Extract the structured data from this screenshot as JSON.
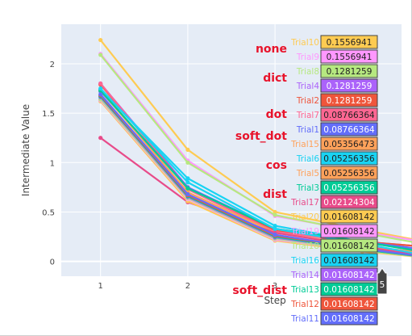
{
  "chart_data": {
    "type": "line",
    "xlabel": "Step",
    "ylabel": "Intermediate Value",
    "xlim": [
      0.55,
      4.45
    ],
    "ylim": [
      -0.15,
      2.4
    ],
    "x_ticks": [
      1,
      2,
      3
    ],
    "y_ticks": [
      0,
      0.5,
      1,
      1.5,
      2
    ],
    "x_tick_labels": [
      "1",
      "2",
      "3"
    ],
    "y_tick_labels": [
      "0",
      "0.5",
      "1",
      "1.5",
      "2"
    ],
    "x": [
      1,
      2,
      3,
      4,
      5
    ],
    "hover_x_label": "5",
    "series": [
      {
        "name": "Trial10",
        "color": "#FECB52",
        "values": [
          2.24,
          1.13,
          0.5,
          0.32,
          0.1556941
        ]
      },
      {
        "name": "Trial9",
        "color": "#FF97FF",
        "values": [
          2.1,
          1.02,
          0.46,
          0.3,
          0.1556941
        ]
      },
      {
        "name": "Trial8",
        "color": "#B6E880",
        "values": [
          2.09,
          1.0,
          0.47,
          0.29,
          0.1281259
        ]
      },
      {
        "name": "Trial4",
        "color": "#AB63FA",
        "values": [
          1.8,
          0.75,
          0.3,
          0.2,
          0.1281259
        ]
      },
      {
        "name": "Trial2",
        "color": "#EF553B",
        "values": [
          1.79,
          0.74,
          0.31,
          0.2,
          0.1281259
        ]
      },
      {
        "name": "Trial7",
        "color": "#FF6692",
        "values": [
          1.8,
          0.73,
          0.3,
          0.19,
          0.08766364
        ]
      },
      {
        "name": "Trial1",
        "color": "#636EFA",
        "values": [
          1.72,
          0.75,
          0.33,
          0.2,
          0.08766364
        ]
      },
      {
        "name": "Trial15",
        "color": "#FFA15A",
        "values": [
          1.73,
          0.7,
          0.29,
          0.16,
          0.05356473
        ]
      },
      {
        "name": "Trial6",
        "color": "#19D3F3",
        "values": [
          1.74,
          0.84,
          0.36,
          0.2,
          0.05256356
        ]
      },
      {
        "name": "Trial5",
        "color": "#FFA15A",
        "values": [
          1.64,
          0.66,
          0.25,
          0.16,
          0.05256356
        ]
      },
      {
        "name": "Trial3",
        "color": "#00CC96",
        "values": [
          1.73,
          0.74,
          0.33,
          0.2,
          0.05256356
        ]
      },
      {
        "name": "Trial17",
        "color": "#E84B8A",
        "values": [
          1.25,
          0.6,
          0.29,
          0.15,
          0.02124304
        ]
      },
      {
        "name": "Trial20",
        "color": "#FECB52",
        "values": [
          1.62,
          0.61,
          0.21,
          0.1,
          0.01608142
        ]
      },
      {
        "name": "Trial19",
        "color": "#FF97FF",
        "values": [
          1.63,
          0.63,
          0.22,
          0.11,
          0.01608142
        ]
      },
      {
        "name": "Trial18",
        "color": "#B6E880",
        "values": [
          1.64,
          0.64,
          0.23,
          0.11,
          0.01608142
        ]
      },
      {
        "name": "Trial16",
        "color": "#19D3F3",
        "values": [
          1.75,
          0.8,
          0.33,
          0.18,
          0.01608142
        ]
      },
      {
        "name": "Trial14",
        "color": "#AB63FA",
        "values": [
          1.66,
          0.65,
          0.24,
          0.12,
          0.01608142
        ]
      },
      {
        "name": "Trial13",
        "color": "#00CC96",
        "values": [
          1.67,
          0.66,
          0.25,
          0.12,
          0.01608142
        ]
      },
      {
        "name": "Trial12",
        "color": "#EF553B",
        "values": [
          1.68,
          0.67,
          0.26,
          0.13,
          0.01608142
        ]
      },
      {
        "name": "Trial11",
        "color": "#636EFA",
        "values": [
          1.69,
          0.68,
          0.27,
          0.13,
          0.01608142
        ]
      }
    ],
    "hover": [
      {
        "trial": "Trial10",
        "value": "0.1556941",
        "color": "#FECB52"
      },
      {
        "trial": "Trial9",
        "value": "0.1556941",
        "color": "#FF97FF"
      },
      {
        "trial": "Trial8",
        "value": "0.1281259",
        "color": "#B6E880"
      },
      {
        "trial": "Trial4",
        "value": "0.1281259",
        "color": "#AB63FA"
      },
      {
        "trial": "Trial2",
        "value": "0.1281259",
        "color": "#EF553B"
      },
      {
        "trial": "Trial7",
        "value": "0.08766364",
        "color": "#FF6692"
      },
      {
        "trial": "Trial1",
        "value": "0.08766364",
        "color": "#636EFA"
      },
      {
        "trial": "Trial15",
        "value": "0.05356473",
        "color": "#FFA15A"
      },
      {
        "trial": "Trial6",
        "value": "0.05256356",
        "color": "#19D3F3"
      },
      {
        "trial": "Trial5",
        "value": "0.05256356",
        "color": "#FFA15A"
      },
      {
        "trial": "Trial3",
        "value": "0.05256356",
        "color": "#00CC96"
      },
      {
        "trial": "Trial17",
        "value": "0.02124304",
        "color": "#E84B8A"
      },
      {
        "trial": "Trial20",
        "value": "0.01608142",
        "color": "#FECB52"
      },
      {
        "trial": "Trial19",
        "value": "0.01608142",
        "color": "#FF97FF"
      },
      {
        "trial": "Trial18",
        "value": "0.01608142",
        "color": "#B6E880"
      },
      {
        "trial": "Trial16",
        "value": "0.01608142",
        "color": "#19D3F3"
      },
      {
        "trial": "Trial14",
        "value": "0.01608142",
        "color": "#AB63FA"
      },
      {
        "trial": "Trial13",
        "value": "0.01608142",
        "color": "#00CC96"
      },
      {
        "trial": "Trial12",
        "value": "0.01608142",
        "color": "#EF553B"
      },
      {
        "trial": "Trial11",
        "value": "0.01608142",
        "color": "#636EFA"
      }
    ],
    "annotations": [
      {
        "text": "none",
        "row": 1
      },
      {
        "text": "dict",
        "row": 3
      },
      {
        "text": "dot",
        "row": 5.5
      },
      {
        "text": "soft_dot",
        "row": 7
      },
      {
        "text": "cos",
        "row": 9
      },
      {
        "text": "dist",
        "row": 11
      },
      {
        "text": "soft_dist",
        "row": 17.6
      }
    ],
    "plot_bg": "#e5ecf6",
    "grid_color": "#ffffff",
    "annotation_color": "#e8132b"
  }
}
